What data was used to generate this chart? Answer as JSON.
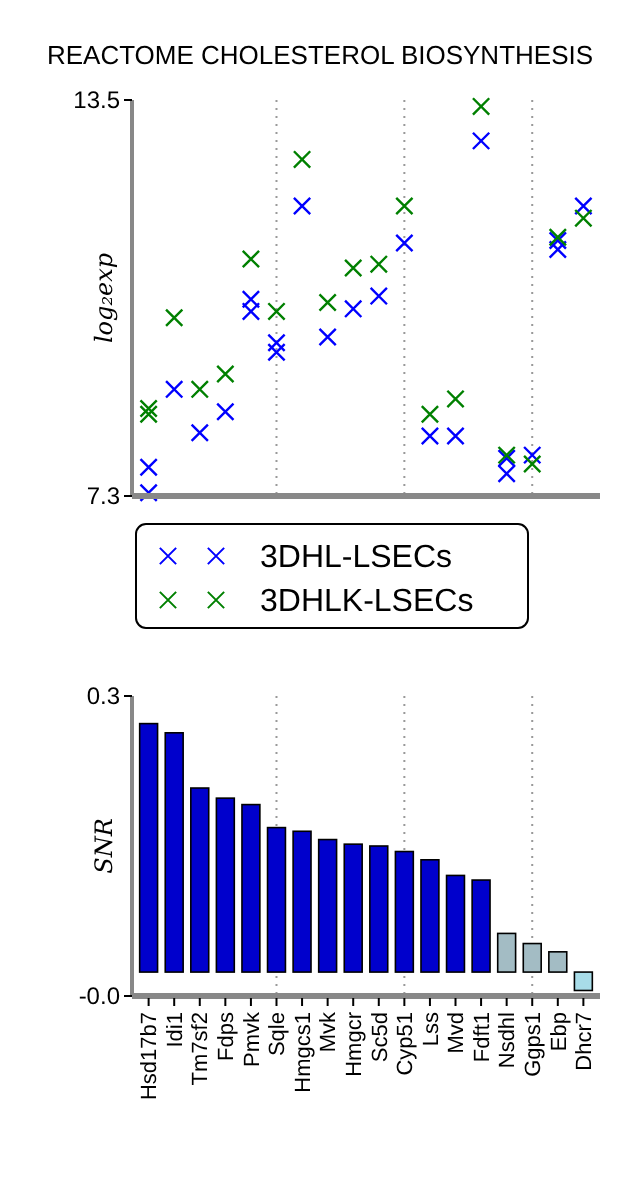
{
  "chart_data": [
    {
      "type": "scatter",
      "title": "REACTOME CHOLESTEROL BIOSYNTHESIS",
      "ylabel": "log₂exp",
      "categories": [
        "Hsd17b7",
        "Idi1",
        "Tm7sf2",
        "Fdps",
        "Pmvk",
        "Sqle",
        "Hmgcs1",
        "Mvk",
        "Hmgcr",
        "Sc5d",
        "Cyp51",
        "Lss",
        "Mvd",
        "Fdft1",
        "Nsdhl",
        "Ggps1",
        "Ebp",
        "Dhcr7"
      ],
      "ylim": [
        7.3,
        13.5
      ],
      "yticks": [
        7.3,
        13.5
      ],
      "tick_labels": "y",
      "marker": "cross",
      "legend": "bottom",
      "ref_lines": [
        {
          "axis": "x",
          "value": "Sqle",
          "line_style": "dotted",
          "color": "#999999"
        },
        {
          "axis": "x",
          "value": "Cyp51",
          "line_style": "dotted",
          "color": "#999999"
        },
        {
          "axis": "x",
          "value": "Ggps1",
          "line_style": "dotted",
          "color": "#999999"
        }
      ],
      "series": [
        {
          "name": "3DHL-LSECs",
          "color": "#0000ff",
          "x": [
            "Hsd17b7",
            "Hsd17b7",
            "Idi1",
            "Tm7sf2",
            "Fdps",
            "Pmvk",
            "Pmvk",
            "Sqle",
            "Sqle",
            "Hmgcs1",
            "Mvk",
            "Hmgcr",
            "Sc5d",
            "Cyp51",
            "Lss",
            "Mvd",
            "Fdft1",
            "Nsdhl",
            "Nsdhl",
            "Ggps1",
            "Ebp",
            "Ebp",
            "Dhcr7"
          ],
          "values": [
            7.75,
            7.35,
            8.97,
            8.29,
            8.62,
            10.38,
            10.19,
            9.7,
            9.55,
            11.84,
            9.79,
            10.23,
            10.43,
            11.26,
            8.24,
            8.24,
            12.86,
            7.89,
            7.65,
            7.94,
            11.3,
            11.16,
            11.84
          ]
        },
        {
          "name": "3DHLK-LSECs",
          "color": "#008000",
          "x": [
            "Hsd17b7",
            "Hsd17b7",
            "Idi1",
            "Tm7sf2",
            "Fdps",
            "Pmvk",
            "Sqle",
            "Hmgcs1",
            "Mvk",
            "Hmgcr",
            "Sc5d",
            "Cyp51",
            "Lss",
            "Mvd",
            "Fdft1",
            "Nsdhl",
            "Ggps1",
            "Ebp",
            "Dhcr7"
          ],
          "values": [
            8.67,
            8.58,
            10.09,
            8.97,
            9.21,
            11.01,
            10.19,
            12.57,
            10.33,
            10.87,
            10.93,
            11.84,
            8.58,
            8.82,
            13.4,
            7.94,
            7.8,
            11.35,
            11.65
          ]
        }
      ]
    },
    {
      "type": "bar",
      "ylabel": "SNR",
      "categories": [
        "Hsd17b7",
        "Idi1",
        "Tm7sf2",
        "Fdps",
        "Pmvk",
        "Sqle",
        "Hmgcs1",
        "Mvk",
        "Hmgcr",
        "Sc5d",
        "Cyp51",
        "Lss",
        "Mvd",
        "Fdft1",
        "Nsdhl",
        "Ggps1",
        "Ebp",
        "Dhcr7"
      ],
      "ylim": [
        -0.026,
        0.3
      ],
      "yticks": [
        {
          "value": -0.026,
          "label": "-0.0"
        },
        0.3
      ],
      "values": [
        0.27,
        0.26,
        0.2,
        0.189,
        0.182,
        0.157,
        0.153,
        0.144,
        0.139,
        0.137,
        0.131,
        0.122,
        0.105,
        0.1,
        0.042,
        0.031,
        0.022,
        -0.02
      ],
      "colors": [
        "#0000cc",
        "#0000cc",
        "#0000cc",
        "#0000cc",
        "#0000cc",
        "#0000cc",
        "#0000cc",
        "#0000cc",
        "#0000cc",
        "#0000cc",
        "#0000cc",
        "#0000cc",
        "#0000cc",
        "#0000cc",
        "#a3bcc4",
        "#a3bcc4",
        "#a3bcc4",
        "#a8dce8"
      ],
      "ref_lines": [
        {
          "axis": "x",
          "value": "Sqle",
          "line_style": "dotted",
          "color": "#999999"
        },
        {
          "axis": "x",
          "value": "Cyp51",
          "line_style": "dotted",
          "color": "#999999"
        },
        {
          "axis": "x",
          "value": "Ggps1",
          "line_style": "dotted",
          "color": "#999999"
        }
      ]
    }
  ]
}
